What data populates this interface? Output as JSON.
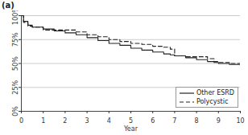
{
  "chart_data": {
    "type": "line",
    "title": "(a)",
    "x_label": "Year",
    "x": [
      0,
      0.1,
      0.3,
      0.5,
      1,
      1.5,
      2,
      2.5,
      3,
      3.5,
      4,
      4.5,
      5,
      5.5,
      6,
      6.5,
      6.8,
      7,
      7.5,
      8,
      8.5,
      8.8,
      9,
      9.5,
      10
    ],
    "series": [
      {
        "name": "Other ESRD",
        "color": "#222222",
        "line_style": "solid",
        "values": [
          100,
          94,
          90,
          88,
          86,
          84,
          82,
          80,
          77,
          74,
          71,
          69,
          66,
          64,
          62,
          60,
          59,
          58,
          56,
          54,
          52,
          51,
          50,
          49,
          48
        ]
      },
      {
        "name": "Polycystic",
        "color": "#222222",
        "line_style": "dashed",
        "values": [
          100,
          93,
          89,
          88,
          85,
          85,
          85,
          83,
          80,
          78,
          75,
          73,
          71,
          70,
          68,
          67,
          65,
          58,
          57,
          57,
          55,
          52,
          51,
          50,
          49
        ]
      }
    ],
    "xlim": [
      0,
      10
    ],
    "xticks": [
      0,
      1,
      2,
      3,
      4,
      5,
      6,
      7,
      8,
      9,
      10
    ],
    "ylim": [
      0,
      100
    ],
    "yticks": [
      {
        "value": 0,
        "label": "0%"
      },
      {
        "value": 25,
        "label": "25%"
      },
      {
        "value": 50,
        "label": "50%"
      },
      {
        "value": 75,
        "label": "75%"
      },
      {
        "value": 100,
        "label": "100%"
      }
    ],
    "grid": true,
    "legend": "lower right"
  }
}
